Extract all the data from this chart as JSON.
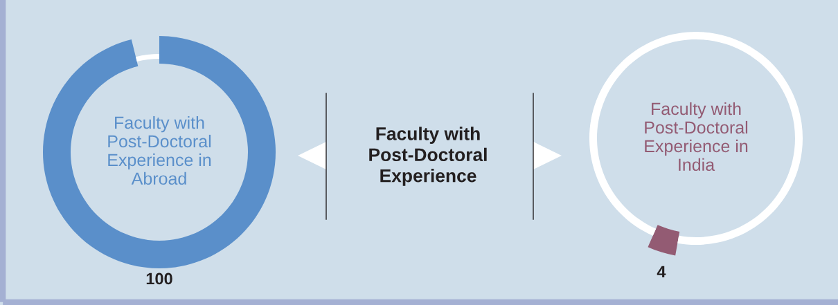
{
  "chart_data": [
    {
      "type": "donut",
      "title": "Faculty with\nPost-Doctoral\nExperience in\nAbroad",
      "categories": [
        null,
        null
      ],
      "values": [
        100,
        4
      ],
      "colors": [
        "#5a8fca",
        "#ffffff"
      ],
      "value_labels": [
        "100",
        null
      ]
    },
    {
      "type": "other",
      "title": "Faculty with\nPost-Doctoral\nExperience"
    },
    {
      "type": "donut",
      "title": "Faculty with\nPost-Doctoral\nExperience in\nIndia",
      "categories": [
        null,
        null
      ],
      "values": [
        4,
        100
      ],
      "colors": [
        "#935b73",
        "#ffffff"
      ],
      "value_labels": [
        "4",
        null
      ]
    }
  ]
}
